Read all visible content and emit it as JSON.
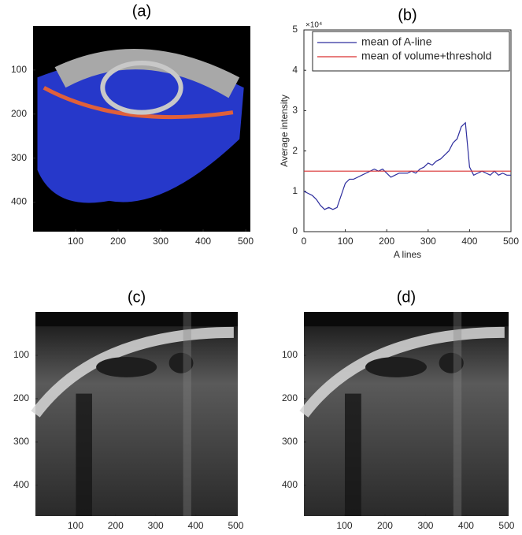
{
  "chart_data": [
    {
      "type": "image",
      "title": "(a)",
      "xlim": [
        0,
        511
      ],
      "ylim": [
        0,
        467
      ],
      "y_reversed": true,
      "xticks": [
        100,
        200,
        300,
        400,
        500
      ],
      "yticks": [
        100,
        200,
        300,
        400
      ]
    },
    {
      "type": "line",
      "title": "(b)",
      "xlabel": "A lines",
      "ylabel": "Average intensity",
      "y_exponent": "×10⁴",
      "xlim": [
        0,
        500
      ],
      "ylim": [
        0,
        5
      ],
      "xticks": [
        0,
        100,
        200,
        300,
        400,
        500
      ],
      "yticks": [
        0,
        1,
        2,
        3,
        4,
        5
      ],
      "legend": "top-right",
      "x": [
        0,
        10,
        20,
        30,
        40,
        50,
        60,
        70,
        80,
        90,
        100,
        110,
        120,
        130,
        140,
        150,
        160,
        170,
        180,
        190,
        200,
        210,
        220,
        230,
        240,
        250,
        260,
        270,
        280,
        290,
        300,
        310,
        320,
        330,
        340,
        350,
        360,
        370,
        380,
        390,
        400,
        410,
        420,
        430,
        440,
        450,
        460,
        470,
        480,
        490,
        500
      ],
      "series": [
        {
          "name": "mean of A-line",
          "color": "#2e2e9e",
          "values": [
            1.0,
            0.95,
            0.9,
            0.8,
            0.65,
            0.55,
            0.6,
            0.55,
            0.6,
            0.9,
            1.2,
            1.3,
            1.3,
            1.35,
            1.4,
            1.45,
            1.5,
            1.55,
            1.5,
            1.55,
            1.45,
            1.35,
            1.4,
            1.45,
            1.45,
            1.45,
            1.5,
            1.45,
            1.55,
            1.6,
            1.7,
            1.65,
            1.75,
            1.8,
            1.9,
            2.0,
            2.2,
            2.3,
            2.6,
            2.7,
            1.6,
            1.4,
            1.45,
            1.5,
            1.45,
            1.4,
            1.5,
            1.4,
            1.45,
            1.4,
            1.4
          ]
        },
        {
          "name": "mean of volume+threshold",
          "color": "#d93030",
          "values": [
            1.5,
            1.5,
            1.5,
            1.5,
            1.5,
            1.5,
            1.5,
            1.5,
            1.5,
            1.5,
            1.5,
            1.5,
            1.5,
            1.5,
            1.5,
            1.5,
            1.5,
            1.5,
            1.5,
            1.5,
            1.5,
            1.5,
            1.5,
            1.5,
            1.5,
            1.5,
            1.5,
            1.5,
            1.5,
            1.5,
            1.5,
            1.5,
            1.5,
            1.5,
            1.5,
            1.5,
            1.5,
            1.5,
            1.5,
            1.5,
            1.5,
            1.5,
            1.5,
            1.5,
            1.5,
            1.5,
            1.5,
            1.5,
            1.5,
            1.5,
            1.5
          ]
        }
      ]
    },
    {
      "type": "image",
      "title": "(c)",
      "xlim": [
        0,
        505
      ],
      "ylim": [
        0,
        471
      ],
      "y_reversed": true,
      "xticks": [
        100,
        200,
        300,
        400,
        500
      ],
      "yticks": [
        100,
        200,
        300,
        400
      ]
    },
    {
      "type": "image",
      "title": "(d)",
      "xlim": [
        0,
        505
      ],
      "ylim": [
        0,
        471
      ],
      "y_reversed": true,
      "xticks": [
        100,
        200,
        300,
        400,
        500
      ],
      "yticks": [
        100,
        200,
        300,
        400
      ]
    }
  ]
}
